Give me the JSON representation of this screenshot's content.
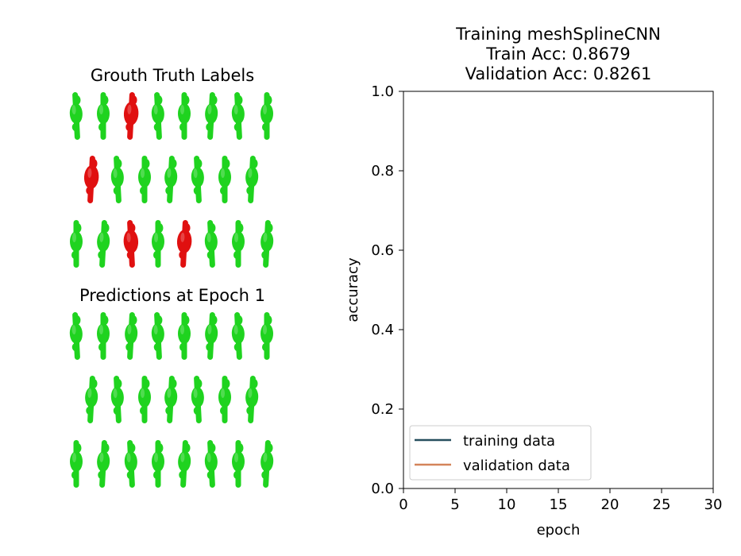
{
  "left_panel": {
    "ground_truth_title": "Grouth Truth Labels",
    "predictions_title": "Predictions at Epoch 1",
    "ground_truth_rows": [
      [
        "green",
        "green",
        "red",
        "green",
        "green",
        "green",
        "green",
        "green"
      ],
      [
        "red",
        "green",
        "green",
        "green",
        "green",
        "green",
        "green"
      ],
      [
        "green",
        "green",
        "red",
        "green",
        "red",
        "green",
        "green",
        "green"
      ]
    ],
    "prediction_rows": [
      [
        "green",
        "green",
        "green",
        "green",
        "green",
        "green",
        "green",
        "green"
      ],
      [
        "green",
        "green",
        "green",
        "green",
        "green",
        "green",
        "green"
      ],
      [
        "green",
        "green",
        "green",
        "green",
        "green",
        "green",
        "green",
        "green"
      ]
    ],
    "colors": {
      "green": "#1fd31f",
      "red": "#e01010"
    }
  },
  "chart_data": {
    "type": "line",
    "title_lines": [
      "Training meshSplineCNN",
      "Train Acc: 0.8679",
      "Validation Acc: 0.8261"
    ],
    "xlabel": "epoch",
    "ylabel": "accuracy",
    "xlim": [
      0,
      30
    ],
    "ylim": [
      0.0,
      1.0
    ],
    "x_ticks": [
      "0",
      "5",
      "10",
      "15",
      "20",
      "25",
      "30"
    ],
    "y_ticks": [
      "0.0",
      "0.2",
      "0.4",
      "0.6",
      "0.8",
      "1.0"
    ],
    "series": [
      {
        "name": "training data",
        "color": "#264f5e",
        "x": [],
        "y": []
      },
      {
        "name": "validation data",
        "color": "#d4845a",
        "x": [],
        "y": []
      }
    ],
    "legend_position": "lower-left",
    "grid": false
  }
}
